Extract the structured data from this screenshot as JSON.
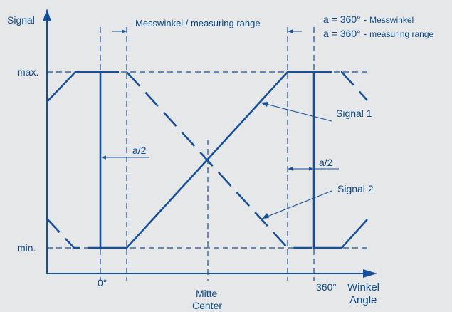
{
  "axes": {
    "y_label": "Signal",
    "x_label_line1": "Winkel",
    "x_label_line2": "Angle",
    "max_label": "max.",
    "min_label": "min."
  },
  "ticks": {
    "zero": "0°",
    "center_line1": "Mitte",
    "center_line2": "Center",
    "full": "360°"
  },
  "annotations": {
    "measuring_range": "Messwinkel / measuring range",
    "a_half_left": "a/2",
    "a_half_right": "a/2",
    "signal1": "Signal 1",
    "signal2": "Signal 2"
  },
  "legend": {
    "line1_prefix": "a = 360° - ",
    "line1_suffix": "Messwinkel",
    "line2_prefix": "a = 360° - ",
    "line2_suffix": "measuring range"
  },
  "colors": {
    "background": "#e6e7e8",
    "line": "#17509a",
    "text": "#0d4a8a"
  }
}
